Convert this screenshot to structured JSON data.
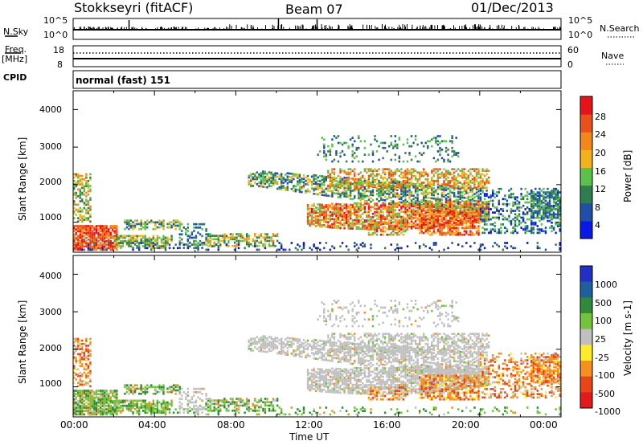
{
  "header": {
    "station": "Stokkseyri (fitACF)",
    "beam": "Beam 07",
    "date": "01/Dec/2013"
  },
  "top_strip": {
    "left_label": "N.Sky",
    "right_label": "N.Search",
    "left_ticks": [
      "10^5",
      "10^0"
    ],
    "right_ticks": [
      "10^5",
      "10^0"
    ]
  },
  "freq_strip": {
    "left_label_1": "Freq.",
    "left_label_2": "[MHz]",
    "left_ticks": [
      "18",
      "8"
    ],
    "right_label": "Nave",
    "right_ticks": [
      "60",
      "0"
    ]
  },
  "cpid": {
    "label": "CPID",
    "value": "normal (fast) 151"
  },
  "colors": {
    "power": [
      "#0a18e6",
      "#1f4fa8",
      "#2e7d4f",
      "#5ac24a",
      "#f2b21e",
      "#f5861c",
      "#e8521a",
      "#e6141a"
    ],
    "velocity": [
      "#2330c8",
      "#1d5fa0",
      "#2f8a3a",
      "#72c43a",
      "#c0c0c0",
      "#ffeb2a",
      "#f59020",
      "#e84518",
      "#e31a1c"
    ]
  },
  "chart_data": [
    {
      "type": "heatmap",
      "name": "power",
      "ylabel": "Slant Range [km]",
      "yticks": [
        "1000",
        "2000",
        "3000",
        "4000"
      ],
      "ylim": [
        200,
        4500
      ],
      "colorbar_label": "Power [dB]",
      "colorbar_ticks": [
        "4",
        "8",
        "12",
        "16",
        "20",
        "24",
        "28"
      ],
      "colorbar_range": [
        0,
        30
      ]
    },
    {
      "type": "heatmap",
      "name": "velocity",
      "ylabel": "Slant Range [km]",
      "yticks": [
        "1000",
        "2000",
        "3000",
        "4000"
      ],
      "ylim": [
        200,
        4500
      ],
      "colorbar_label": "Velocity [m s-1]",
      "colorbar_ticks": [
        "1000",
        "500",
        "100",
        "25",
        "-25",
        "-100",
        "-500",
        "-1000"
      ]
    }
  ],
  "xaxis": {
    "label": "Time UT",
    "ticks": [
      "00:00",
      "04:00",
      "08:00",
      "12:00",
      "16:00",
      "20:00",
      "00:00"
    ]
  }
}
